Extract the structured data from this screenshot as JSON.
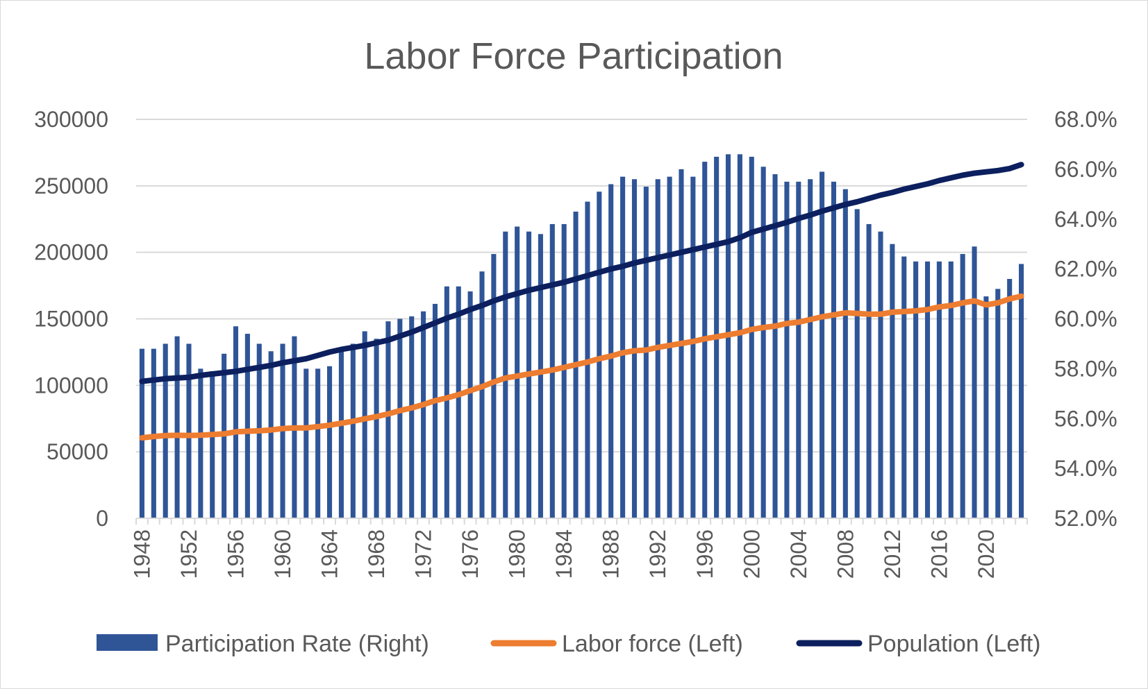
{
  "chart_data": {
    "type": "bar+line",
    "title": "Labor Force Participation",
    "x": [
      1948,
      1949,
      1950,
      1951,
      1952,
      1953,
      1954,
      1955,
      1956,
      1957,
      1958,
      1959,
      1960,
      1961,
      1962,
      1963,
      1964,
      1965,
      1966,
      1967,
      1968,
      1969,
      1970,
      1971,
      1972,
      1973,
      1974,
      1975,
      1976,
      1977,
      1978,
      1979,
      1980,
      1981,
      1982,
      1983,
      1984,
      1985,
      1986,
      1987,
      1988,
      1989,
      1990,
      1991,
      1992,
      1993,
      1994,
      1995,
      1996,
      1997,
      1998,
      1999,
      2000,
      2001,
      2002,
      2003,
      2004,
      2005,
      2006,
      2007,
      2008,
      2009,
      2010,
      2011,
      2012,
      2013,
      2014,
      2015,
      2016,
      2017,
      2018,
      2019,
      2020,
      2021,
      2022,
      2023
    ],
    "x_tick_labels": [
      "1948",
      "1952",
      "1956",
      "1960",
      "1964",
      "1968",
      "1972",
      "1976",
      "1980",
      "1984",
      "1988",
      "1992",
      "1996",
      "2000",
      "2004",
      "2008",
      "2012",
      "2016",
      "2020"
    ],
    "left_axis": {
      "ylim": [
        0,
        300000
      ],
      "ticks": [
        "0",
        "50000",
        "100000",
        "150000",
        "200000",
        "250000",
        "300000"
      ]
    },
    "right_axis": {
      "ylim": [
        52.0,
        68.0
      ],
      "ticks": [
        "52.0%",
        "54.0%",
        "56.0%",
        "58.0%",
        "60.0%",
        "62.0%",
        "64.0%",
        "66.0%",
        "68.0%"
      ]
    },
    "series": [
      {
        "name": "Participation Rate (Right)",
        "kind": "bar",
        "axis": "right",
        "color": "#2f5597",
        "values": [
          58.8,
          58.8,
          59.0,
          59.3,
          59.0,
          58.0,
          57.9,
          58.6,
          59.7,
          59.4,
          59.0,
          58.7,
          59.0,
          59.3,
          58.0,
          58.0,
          58.1,
          58.8,
          59.0,
          59.5,
          59.2,
          59.9,
          60.0,
          60.1,
          60.3,
          60.6,
          61.3,
          61.3,
          61.1,
          61.9,
          62.6,
          63.5,
          63.7,
          63.5,
          63.4,
          63.8,
          63.8,
          64.3,
          64.7,
          65.1,
          65.4,
          65.7,
          65.6,
          65.3,
          65.6,
          65.7,
          66.0,
          65.7,
          66.3,
          66.5,
          66.6,
          66.6,
          66.5,
          66.1,
          65.8,
          65.5,
          65.5,
          65.6,
          65.9,
          65.5,
          65.2,
          64.4,
          63.8,
          63.5,
          63.0,
          62.5,
          62.3,
          62.3,
          62.3,
          62.3,
          62.6,
          62.9,
          60.9,
          61.2,
          61.6,
          62.2
        ]
      },
      {
        "name": "Labor force (Left)",
        "kind": "line",
        "axis": "left",
        "color": "#ed7d31",
        "values": [
          60500,
          61500,
          62200,
          62400,
          62300,
          62500,
          63000,
          63500,
          65000,
          65500,
          65800,
          66400,
          67500,
          68000,
          68000,
          69000,
          70000,
          71500,
          73000,
          74800,
          76500,
          78500,
          81000,
          83000,
          85500,
          88500,
          90500,
          93000,
          96000,
          99000,
          102500,
          105500,
          107000,
          108500,
          110000,
          111500,
          113500,
          115500,
          117500,
          120000,
          122000,
          124500,
          126000,
          126500,
          128500,
          130000,
          131500,
          133000,
          135000,
          136500,
          138000,
          139500,
          142000,
          143500,
          144500,
          146500,
          147500,
          149500,
          151500,
          153000,
          154500,
          154000,
          153500,
          153500,
          155000,
          155500,
          156000,
          157000,
          159000,
          160000,
          162000,
          163500,
          160500,
          162000,
          165000,
          167000
        ]
      },
      {
        "name": "Population (Left)",
        "kind": "line",
        "axis": "left",
        "color": "#0c1f5e",
        "values": [
          103000,
          104000,
          105000,
          105500,
          106000,
          107500,
          108500,
          109500,
          110500,
          112000,
          113500,
          115000,
          117000,
          118500,
          120000,
          122500,
          125000,
          127000,
          128500,
          130000,
          132000,
          134000,
          137000,
          140000,
          143500,
          147000,
          150500,
          153500,
          157000,
          160000,
          163500,
          166500,
          169000,
          171500,
          173500,
          175500,
          177500,
          180000,
          182500,
          185000,
          187500,
          189500,
          192000,
          194000,
          196000,
          198000,
          200000,
          202000,
          204000,
          206000,
          208000,
          211000,
          215000,
          217500,
          220000,
          222500,
          225500,
          228000,
          231000,
          233500,
          236000,
          238000,
          240500,
          243000,
          245000,
          247500,
          249500,
          251500,
          254000,
          256000,
          258000,
          259500,
          260500,
          261500,
          263000,
          266000
        ]
      }
    ]
  }
}
